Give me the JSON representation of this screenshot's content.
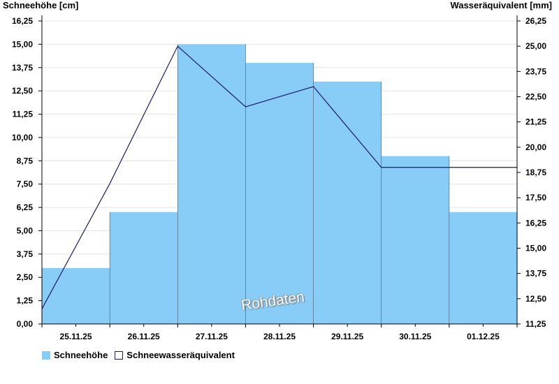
{
  "chart_data": {
    "type": "bar",
    "ylabel": "Schneehöhe [cm]",
    "y2label": "Wasseräquivalent [mm]",
    "categories": [
      "25.11.25",
      "26.11.25",
      "27.11.25",
      "28.11.25",
      "29.11.25",
      "30.11.25",
      "01.12.25"
    ],
    "ylim": [
      0,
      16.25
    ],
    "y2lim": [
      11.25,
      26.25
    ],
    "y_ticks": [
      "0,00",
      "1,25",
      "2,50",
      "3,75",
      "5,00",
      "6,25",
      "7,50",
      "8,75",
      "10,00",
      "11,25",
      "12,50",
      "13,75",
      "15,00",
      "16,25"
    ],
    "y2_ticks": [
      "11,25",
      "12,50",
      "13,75",
      "15,00",
      "16,25",
      "17,50",
      "18,75",
      "20,00",
      "21,25",
      "22,50",
      "23,75",
      "25,00",
      "26,25"
    ],
    "grid": true,
    "legend_position": "bottom-left",
    "series": [
      {
        "name": "Schneehöhe",
        "kind": "step-bar",
        "axis": "left",
        "color": "#87cdf8",
        "values": [
          3,
          6,
          15,
          14,
          13,
          9,
          6
        ]
      },
      {
        "name": "Schneewasseräquivalent",
        "kind": "line",
        "axis": "right",
        "color": "#1a1a6e",
        "points": [
          {
            "x": 0,
            "y": 12.0
          },
          {
            "x": 1,
            "y": 18.2
          },
          {
            "x": 2,
            "y": 25.0
          },
          {
            "x": 3,
            "y": 22.0
          },
          {
            "x": 4,
            "y": 23.0
          },
          {
            "x": 5,
            "y": 19.0
          },
          {
            "x": 6,
            "y": 19.0
          }
        ]
      }
    ]
  },
  "watermark": "Rohdaten"
}
